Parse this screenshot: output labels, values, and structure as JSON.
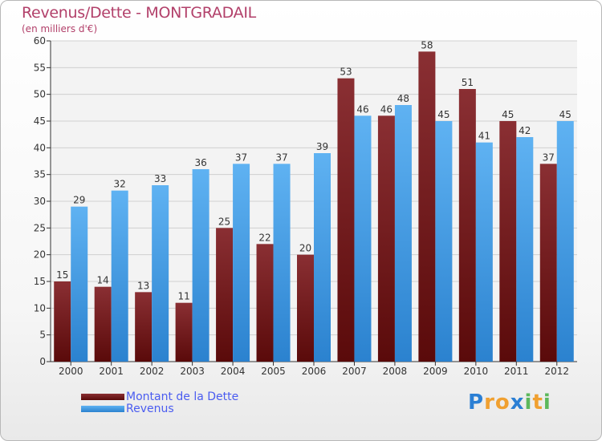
{
  "chart_data": {
    "type": "bar",
    "title": "Revenus/Dette - MONTGRADAIL",
    "subtitle": "(en milliers d'€)",
    "categories": [
      "2000",
      "2001",
      "2002",
      "2003",
      "2004",
      "2005",
      "2006",
      "2007",
      "2008",
      "2009",
      "2010",
      "2011",
      "2012"
    ],
    "series": [
      {
        "name": "Montant de la Dette",
        "color": "#7a1c1c",
        "values": [
          15,
          14,
          13,
          11,
          25,
          22,
          20,
          53,
          46,
          58,
          51,
          45,
          37
        ]
      },
      {
        "name": "Revenus",
        "color": "#3d9be6",
        "values": [
          29,
          32,
          33,
          36,
          37,
          37,
          39,
          46,
          48,
          45,
          41,
          42,
          45
        ]
      }
    ],
    "ylim": [
      0,
      60
    ],
    "yticks": [
      0,
      5,
      10,
      15,
      20,
      25,
      30,
      35,
      40,
      45,
      50,
      55,
      60
    ],
    "grid": true,
    "legend": "bottom-left"
  },
  "brand": {
    "letters": [
      "P",
      "r",
      "o",
      "x",
      "i",
      "t",
      "i"
    ],
    "colors": [
      "#2b7fd4",
      "#f0a030",
      "#f0a030",
      "#2b7fd4",
      "#5cb85c",
      "#f0a030",
      "#5cb85c"
    ]
  }
}
